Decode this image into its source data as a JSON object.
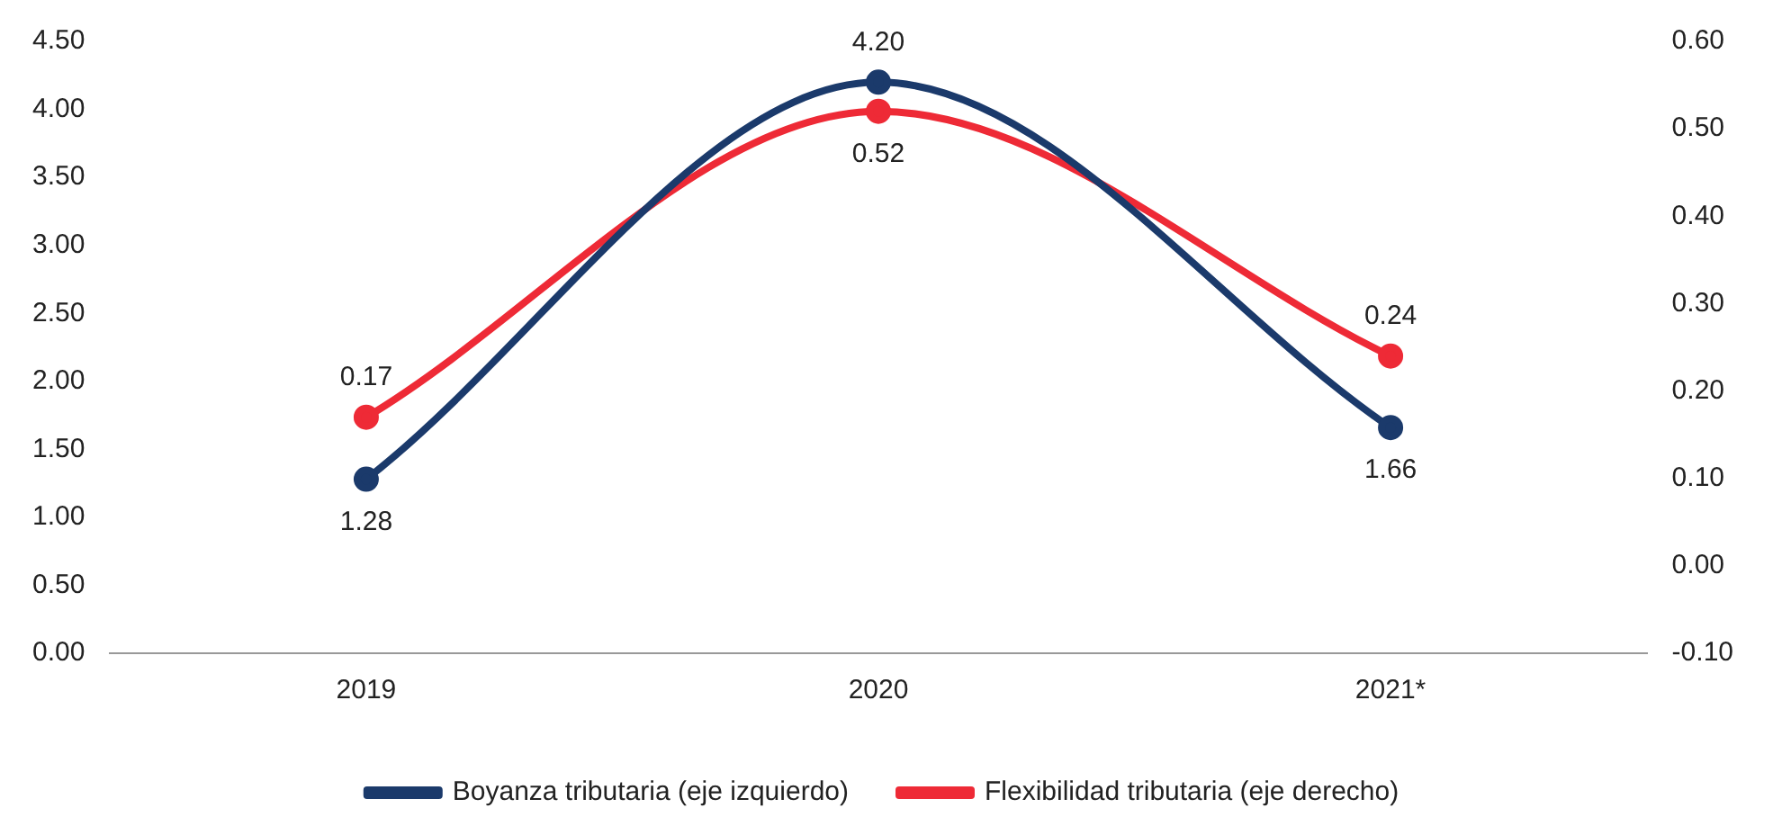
{
  "chart_data": {
    "type": "line",
    "categories": [
      "2019",
      "2020",
      "2021*"
    ],
    "series": [
      {
        "name": "Boyanza tributaria (eje izquierdo)",
        "color": "#1b3a6b",
        "values": [
          1.28,
          4.2,
          1.66
        ],
        "value_labels": [
          "1.28",
          "4.20",
          "1.66"
        ]
      },
      {
        "name": "Flexibilidad tributaria (eje derecho)",
        "color": "#ee2a36",
        "values": [
          0.17,
          0.52,
          0.24
        ],
        "value_labels": [
          "0.17",
          "0.52",
          "0.24"
        ],
        "axis": "y2"
      }
    ],
    "ylim": [
      0,
      4.5
    ],
    "yticks": [
      {
        "value": 0,
        "label": "0.00"
      },
      {
        "value": 0.5,
        "label": "0.50"
      },
      {
        "value": 1,
        "label": "1.00"
      },
      {
        "value": 1.5,
        "label": "1.50"
      },
      {
        "value": 2,
        "label": "2.00"
      },
      {
        "value": 2.5,
        "label": "2.50"
      },
      {
        "value": 3,
        "label": "3.00"
      },
      {
        "value": 3.5,
        "label": "3.50"
      },
      {
        "value": 4,
        "label": "4.00"
      },
      {
        "value": 4.5,
        "label": "4.50"
      }
    ],
    "y2lim": [
      -0.1,
      0.6
    ],
    "y2ticks": [
      {
        "value": -0.1,
        "label": "-0.10"
      },
      {
        "value": 0,
        "label": "0.00"
      },
      {
        "value": 0.1,
        "label": "0.10"
      },
      {
        "value": 0.2,
        "label": "0.20"
      },
      {
        "value": 0.3,
        "label": "0.30"
      },
      {
        "value": 0.4,
        "label": "0.40"
      },
      {
        "value": 0.5,
        "label": "0.50"
      },
      {
        "value": 0.6,
        "label": "0.60"
      }
    ],
    "grid": false,
    "legend": "bottom",
    "marker": "circle",
    "line_style": "solid"
  }
}
